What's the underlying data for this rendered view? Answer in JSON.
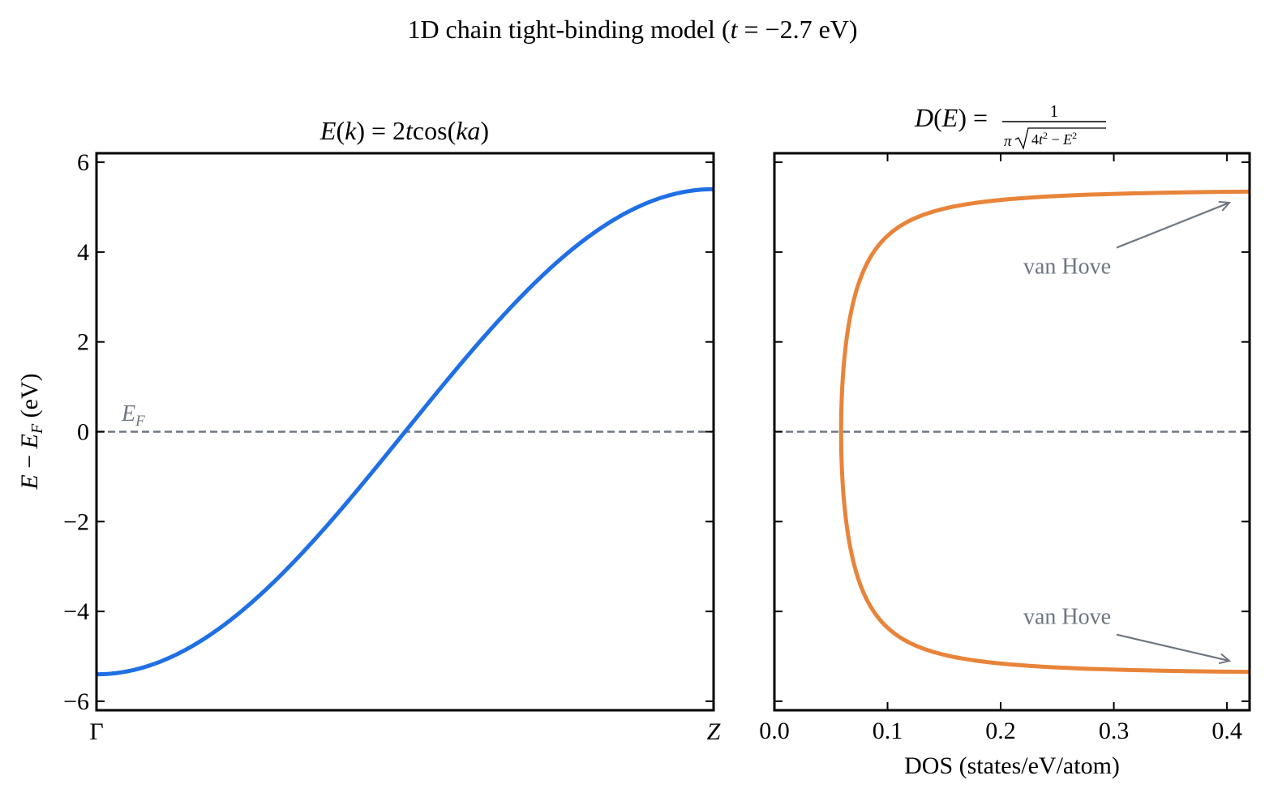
{
  "figure": {
    "suptitle": "1D chain tight-binding model (t = −2.7 eV)"
  },
  "chart_data": [
    {
      "type": "line",
      "panel": "band-structure",
      "title": "E(k) = 2t cos(ka)",
      "xlabel": "",
      "ylabel": "E − E_F (eV)",
      "x_tick_labels": [
        "Γ",
        "Z"
      ],
      "x": [
        0,
        1
      ],
      "xlim": [
        0,
        1
      ],
      "ylim": [
        -6.2,
        6.2
      ],
      "yticks": [
        -6,
        -4,
        -2,
        0,
        2,
        4,
        6
      ],
      "ytick_labels": [
        "−6",
        "−4",
        "−2",
        "0",
        "2",
        "4",
        "6"
      ],
      "hopping_t_eV": -2.7,
      "series": [
        {
          "function": "2t cos(ka)",
          "x": [
            0,
            0.1,
            0.2,
            0.3,
            0.4,
            0.5,
            0.6,
            0.7,
            0.8,
            0.9,
            1.0
          ],
          "y": [
            -5.4,
            -5.14,
            -4.37,
            -3.17,
            -1.67,
            0,
            1.67,
            3.17,
            4.37,
            5.14,
            5.4
          ],
          "color": "#1f6fe5"
        }
      ],
      "reference_line": {
        "y": 0,
        "label": "E_F",
        "style": "dashed",
        "color": "#6e7681"
      },
      "grid": false
    },
    {
      "type": "line",
      "panel": "density-of-states",
      "title": "D(E) = 1 / (π√(4t² − E²))",
      "xlabel": "DOS (states/eV/atom)",
      "ylabel": "",
      "xlim": [
        0.0,
        0.42
      ],
      "xticks": [
        0.0,
        0.1,
        0.2,
        0.3,
        0.4
      ],
      "xtick_labels": [
        "0.0",
        "0.1",
        "0.2",
        "0.3",
        "0.4"
      ],
      "ylim": [
        -6.2,
        6.2
      ],
      "series": [
        {
          "function": "1/(π√(4t²−E²))",
          "dos": [
            0.059,
            0.06,
            0.063,
            0.068,
            0.08,
            0.1,
            0.15,
            0.25,
            0.42
          ],
          "energy": [
            0,
            1,
            2,
            3,
            4,
            4.65,
            5.06,
            5.25,
            5.33
          ],
          "symmetric_in_energy": true,
          "color": "#e8843a"
        }
      ],
      "reference_line": {
        "y": 0,
        "style": "dashed",
        "color": "#6e7681"
      },
      "annotations": [
        {
          "text": "van Hove",
          "x": 0.22,
          "y": 3.7,
          "arrow_to": [
            0.395,
            5.1
          ]
        },
        {
          "text": "van Hove",
          "x": 0.22,
          "y": -4.1,
          "arrow_to": [
            0.395,
            -5.1
          ]
        }
      ],
      "grid": false
    }
  ]
}
